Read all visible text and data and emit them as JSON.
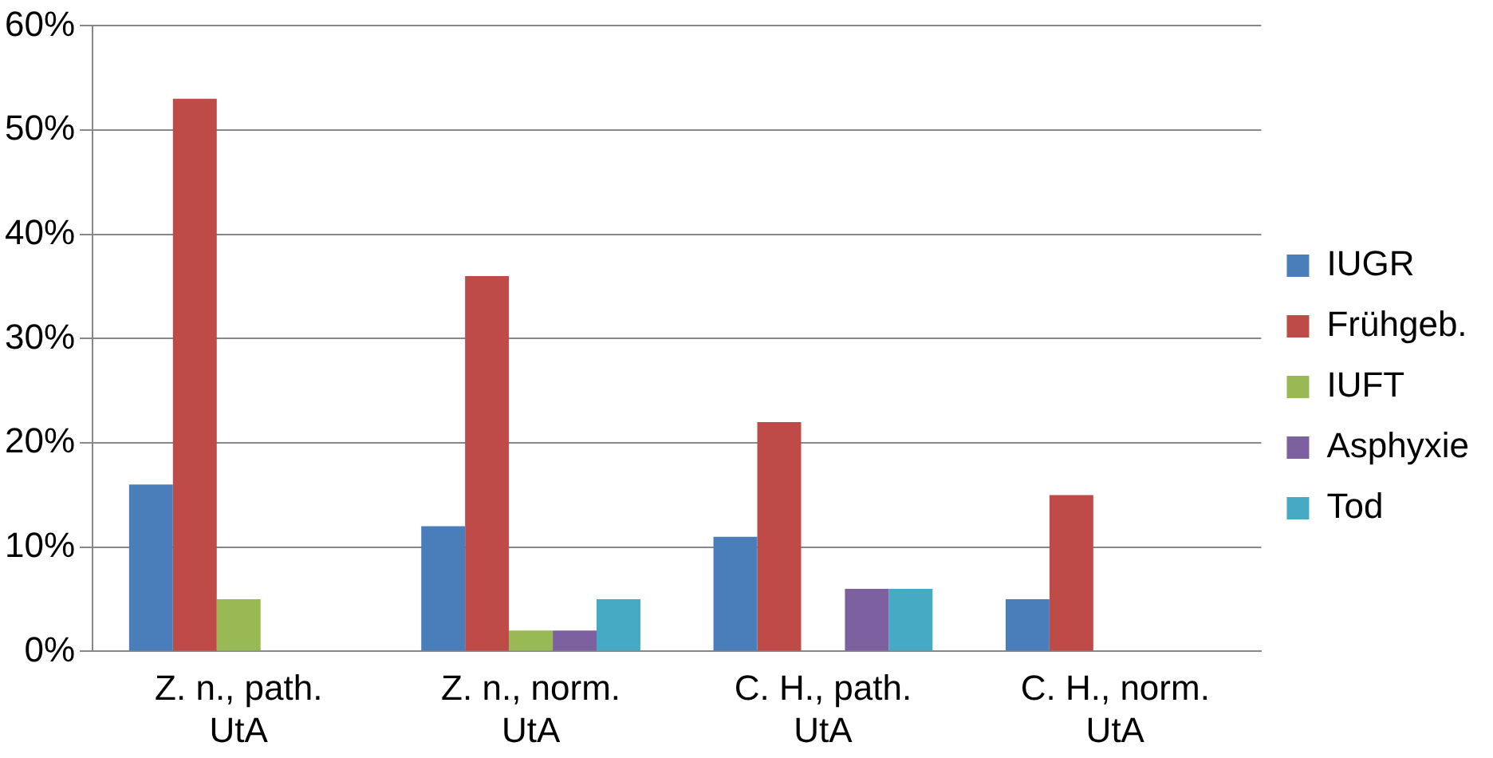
{
  "chart_data": {
    "type": "bar",
    "categories": [
      "Z. n., path. UtA",
      "Z. n., norm. UtA",
      "C. H., path. UtA",
      "C. H., norm. UtA"
    ],
    "series": [
      {
        "name": "IUGR",
        "color": "#4a7ebb",
        "values": [
          16,
          12,
          11,
          5
        ]
      },
      {
        "name": "Frühgeb.",
        "color": "#be4b48",
        "values": [
          53,
          36,
          22,
          15
        ]
      },
      {
        "name": "IUFT",
        "color": "#98b954",
        "values": [
          5,
          2,
          0,
          0
        ]
      },
      {
        "name": "Asphyxie",
        "color": "#7d60a0",
        "values": [
          0,
          2,
          6,
          0
        ]
      },
      {
        "name": "Tod",
        "color": "#46aac5",
        "values": [
          0,
          5,
          6,
          0
        ]
      }
    ],
    "ylim": [
      0,
      60
    ],
    "yticks": [
      {
        "value": 0,
        "label": "0%"
      },
      {
        "value": 10,
        "label": "10%"
      },
      {
        "value": 20,
        "label": "20%"
      },
      {
        "value": 30,
        "label": "30%"
      },
      {
        "value": 40,
        "label": "40%"
      },
      {
        "value": 50,
        "label": "50%"
      },
      {
        "value": 60,
        "label": "60%"
      }
    ],
    "grid": "y",
    "legend": "right"
  }
}
